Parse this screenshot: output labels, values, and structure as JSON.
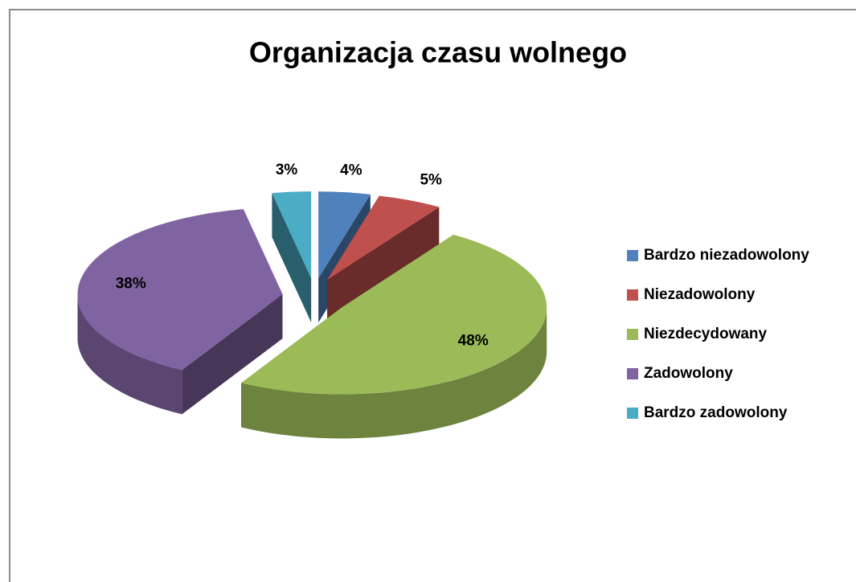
{
  "chart_data": {
    "type": "pie3d",
    "title": "Organizacja czasu wolnego",
    "categories": [
      "Bardzo niezadowolony",
      "Niezadowolony",
      "Niezdecydowany",
      "Zadowolony",
      "Bardzo zadowolony"
    ],
    "values": [
      4,
      5,
      48,
      38,
      3
    ],
    "value_labels": [
      "4%",
      "5%",
      "48%",
      "38%",
      "3%"
    ],
    "colors": [
      "#4f81bd",
      "#c0504d",
      "#9bbb59",
      "#8064a2",
      "#4bacc6"
    ],
    "legend": "right"
  }
}
